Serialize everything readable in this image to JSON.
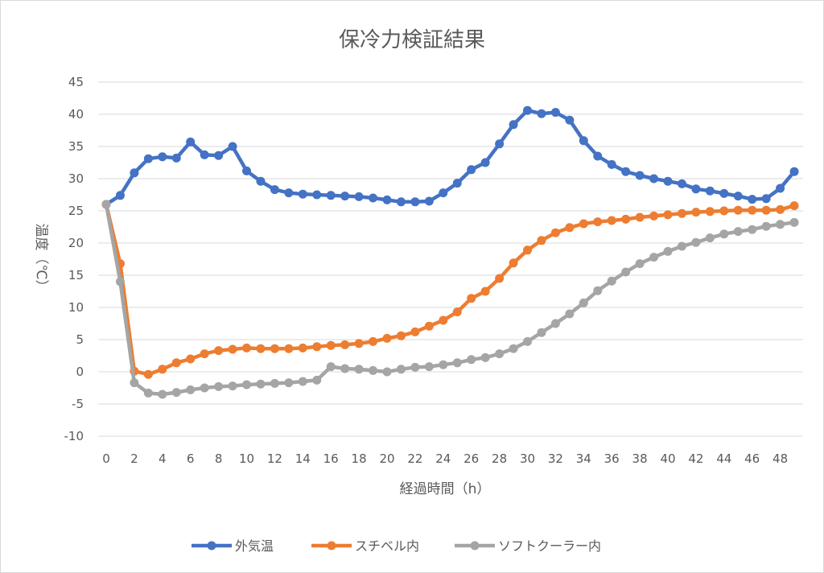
{
  "chart_data": {
    "type": "line",
    "title": "保冷力検証結果",
    "xlabel": "経過時間（h）",
    "ylabel": "温度（℃）",
    "x": [
      0,
      1,
      2,
      3,
      4,
      5,
      6,
      7,
      8,
      9,
      10,
      11,
      12,
      13,
      14,
      15,
      16,
      17,
      18,
      19,
      20,
      21,
      22,
      23,
      24,
      25,
      26,
      27,
      28,
      29,
      30,
      31,
      32,
      33,
      34,
      35,
      36,
      37,
      38,
      39,
      40,
      41,
      42,
      43,
      44,
      45,
      46,
      47,
      48,
      49
    ],
    "x_ticks": [
      0,
      2,
      4,
      6,
      8,
      10,
      12,
      14,
      16,
      18,
      20,
      22,
      24,
      26,
      28,
      30,
      32,
      34,
      36,
      38,
      40,
      42,
      44,
      46,
      48
    ],
    "ylim": [
      -10,
      45
    ],
    "y_ticks": [
      45,
      40,
      35,
      30,
      25,
      20,
      15,
      10,
      5,
      0,
      -5,
      -10
    ],
    "grid": true,
    "legend_position": "bottom",
    "series": [
      {
        "name": "外気温",
        "color": "#4472c4",
        "values": [
          26,
          27.4,
          30.9,
          33.1,
          33.4,
          33.2,
          35.7,
          33.7,
          33.6,
          35,
          31.2,
          29.6,
          28.3,
          27.8,
          27.6,
          27.5,
          27.4,
          27.3,
          27.2,
          27,
          26.7,
          26.4,
          26.4,
          26.5,
          27.8,
          29.3,
          31.4,
          32.5,
          35.4,
          38.4,
          40.6,
          40.1,
          40.3,
          39.1,
          35.9,
          33.5,
          32.2,
          31.1,
          30.5,
          30,
          29.6,
          29.2,
          28.4,
          28.1,
          27.7,
          27.3,
          26.8,
          26.9,
          28.5,
          31.1
        ]
      },
      {
        "name": "スチベル内",
        "color": "#ed7d31",
        "values": [
          26,
          16.8,
          0.1,
          -0.4,
          0.4,
          1.4,
          2,
          2.8,
          3.3,
          3.5,
          3.7,
          3.6,
          3.6,
          3.6,
          3.7,
          3.9,
          4.1,
          4.2,
          4.4,
          4.7,
          5.2,
          5.6,
          6.2,
          7.1,
          8,
          9.3,
          11.4,
          12.5,
          14.5,
          16.9,
          18.9,
          20.4,
          21.6,
          22.4,
          23,
          23.3,
          23.5,
          23.7,
          24,
          24.2,
          24.4,
          24.6,
          24.8,
          24.9,
          25,
          25.1,
          25.1,
          25.1,
          25.2,
          25.8
        ]
      },
      {
        "name": "ソフトクーラー内",
        "color": "#a5a5a5",
        "values": [
          26,
          14,
          -1.7,
          -3.3,
          -3.5,
          -3.2,
          -2.8,
          -2.5,
          -2.3,
          -2.2,
          -2,
          -1.9,
          -1.8,
          -1.7,
          -1.5,
          -1.3,
          0.8,
          0.5,
          0.4,
          0.2,
          0,
          0.4,
          0.7,
          0.8,
          1.1,
          1.4,
          1.9,
          2.2,
          2.8,
          3.6,
          4.7,
          6.1,
          7.5,
          9,
          10.7,
          12.6,
          14.1,
          15.5,
          16.8,
          17.8,
          18.7,
          19.5,
          20.1,
          20.8,
          21.4,
          21.8,
          22.1,
          22.6,
          22.9,
          23.2
        ]
      }
    ]
  }
}
